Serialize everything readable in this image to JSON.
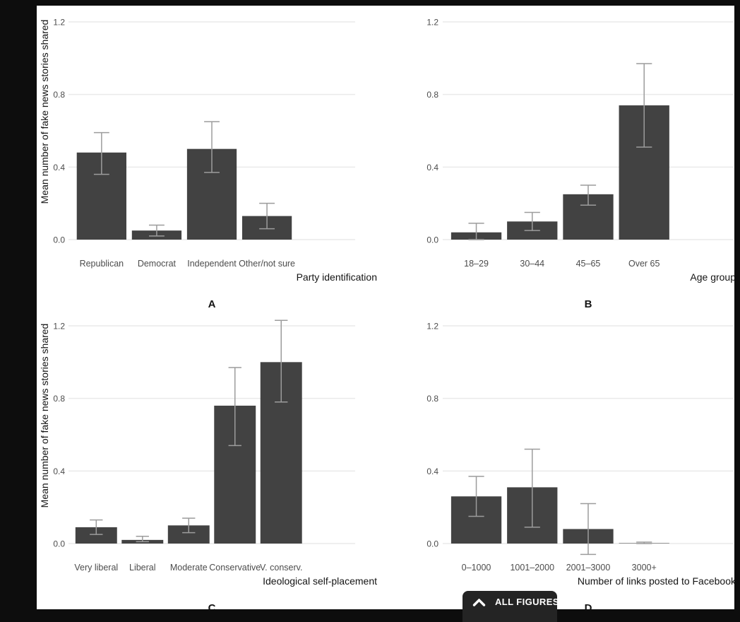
{
  "figure": {
    "y_axis_title": "Mean number of fake news stories shared"
  },
  "chart_data": [
    {
      "type": "bar",
      "panel_label": "A",
      "xlabel": "Party identification",
      "ylabel": "Mean number of fake news stories shared",
      "show_ylabel": true,
      "categories": [
        "Republican",
        "Democrat",
        "Independent",
        "Other/not sure"
      ],
      "values": [
        0.48,
        0.05,
        0.5,
        0.13
      ],
      "error_low": [
        0.36,
        0.02,
        0.37,
        0.06
      ],
      "error_high": [
        0.59,
        0.08,
        0.65,
        0.2
      ],
      "ylim": [
        0,
        1.2
      ],
      "yticks": [
        0,
        0.4,
        0.8,
        1.2
      ],
      "ytick_labels": [
        "0.0",
        "0.4",
        "0.8",
        "1.2"
      ],
      "grid": "horizontal-major-only",
      "legend": "none"
    },
    {
      "type": "bar",
      "panel_label": "B",
      "xlabel": "Age group",
      "ylabel": "",
      "show_ylabel": false,
      "categories": [
        "18–29",
        "30–44",
        "45–65",
        "Over 65"
      ],
      "values": [
        0.04,
        0.1,
        0.25,
        0.74
      ],
      "error_low": [
        0.0,
        0.05,
        0.19,
        0.51
      ],
      "error_high": [
        0.09,
        0.15,
        0.3,
        0.97
      ],
      "ylim": [
        0,
        1.2
      ],
      "yticks": [
        0,
        0.4,
        0.8,
        1.2
      ],
      "ytick_labels": [
        "0.0",
        "0.4",
        "0.8",
        "1.2"
      ],
      "grid": "horizontal-major-only",
      "legend": "none"
    },
    {
      "type": "bar",
      "panel_label": "C",
      "xlabel": "Ideological self-placement",
      "ylabel": "Mean number of fake news stories shared",
      "show_ylabel": true,
      "categories": [
        "Very liberal",
        "Liberal",
        "Moderate",
        "Conservative",
        "V. conserv."
      ],
      "values": [
        0.09,
        0.02,
        0.1,
        0.76,
        1.0
      ],
      "error_low": [
        0.05,
        0.01,
        0.06,
        0.54,
        0.78
      ],
      "error_high": [
        0.13,
        0.04,
        0.14,
        0.97,
        1.23
      ],
      "ylim": [
        0,
        1.2
      ],
      "yticks": [
        0,
        0.4,
        0.8,
        1.2
      ],
      "ytick_labels": [
        "0.0",
        "0.4",
        "0.8",
        "1.2"
      ],
      "grid": "horizontal-major-only",
      "legend": "none"
    },
    {
      "type": "bar",
      "panel_label": "D",
      "xlabel": "Number of links posted to Facebook",
      "ylabel": "",
      "show_ylabel": false,
      "categories": [
        "0–1000",
        "1001–2000",
        "2001–3000",
        "3000+"
      ],
      "values": [
        0.26,
        0.31,
        0.08,
        0.002
      ],
      "error_low": [
        0.15,
        0.09,
        -0.06,
        0.0
      ],
      "error_high": [
        0.37,
        0.52,
        0.22,
        0.008
      ],
      "ylim": [
        0,
        1.2
      ],
      "yticks": [
        0,
        0.4,
        0.8,
        1.2
      ],
      "ytick_labels": [
        "0.0",
        "0.4",
        "0.8",
        "1.2"
      ],
      "grid": "horizontal-major-only",
      "legend": "none"
    }
  ],
  "colors": {
    "bar": "#424242",
    "error_bar": "#9c9c9c",
    "gridline": "#eaeaea",
    "tick_text": "#4c4c4c",
    "category_text": "#4c4c4c",
    "axis_title_text": "#141414",
    "panel_letter_text": "#141414",
    "canvas": "#ffffff",
    "backdrop": "#0d0d0d",
    "button_bg": "#242424",
    "button_text": "#ffffff"
  },
  "footer": {
    "all_figures_label": "ALL FIGURES"
  }
}
